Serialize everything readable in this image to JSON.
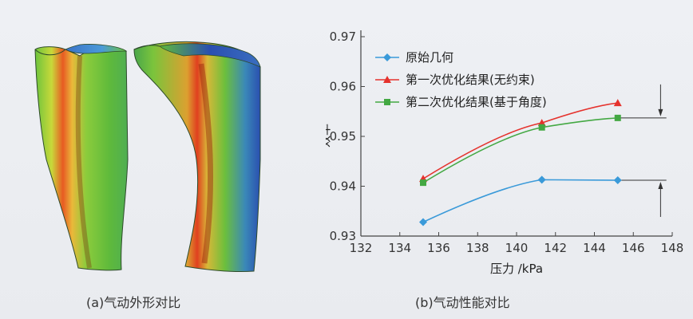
{
  "figure": {
    "caption_a": "(a)气动外形对比",
    "caption_b": "(b)气动性能对比"
  },
  "chart_data": {
    "type": "line",
    "title": "",
    "xlabel": "压力 /kPa",
    "ylabel": "效率",
    "xlim": [
      132,
      148
    ],
    "ylim": [
      0.93,
      0.97
    ],
    "xticks": [
      132,
      134,
      136,
      138,
      140,
      142,
      144,
      146,
      148
    ],
    "yticks": [
      0.93,
      0.94,
      0.95,
      0.96,
      0.97
    ],
    "xtick_labels": [
      "132",
      "134",
      "136",
      "138",
      "140",
      "142",
      "144",
      "146",
      "148"
    ],
    "ytick_labels": [
      "0.93",
      "0.94",
      "0.95",
      "0.96",
      "0.97"
    ],
    "grid": false,
    "legend_position": "top-left",
    "series": [
      {
        "name": "原始几何",
        "color": "#3a9ad9",
        "marker": "diamond",
        "x": [
          135.2,
          141.3,
          145.2
        ],
        "y": [
          0.9328,
          0.9413,
          0.9412
        ]
      },
      {
        "name": "第一次优化结果(无约束)",
        "color": "#e5322d",
        "marker": "triangle",
        "x": [
          135.2,
          141.3,
          145.2
        ],
        "y": [
          0.9415,
          0.9527,
          0.9567
        ]
      },
      {
        "name": "第二次优化结果(基于角度)",
        "color": "#43a843",
        "marker": "square",
        "x": [
          135.2,
          141.3,
          145.2
        ],
        "y": [
          0.9407,
          0.9518,
          0.9537
        ]
      }
    ],
    "annotations": [
      {
        "type": "reference-arrow-down",
        "y": 0.9537
      },
      {
        "type": "reference-arrow-up",
        "y": 0.9412
      }
    ]
  },
  "colors": {
    "blade_green": "#5fba3b",
    "blade_red": "#e0401f",
    "blade_blue": "#2a4fb0",
    "blade_yellow": "#e8d23a"
  }
}
